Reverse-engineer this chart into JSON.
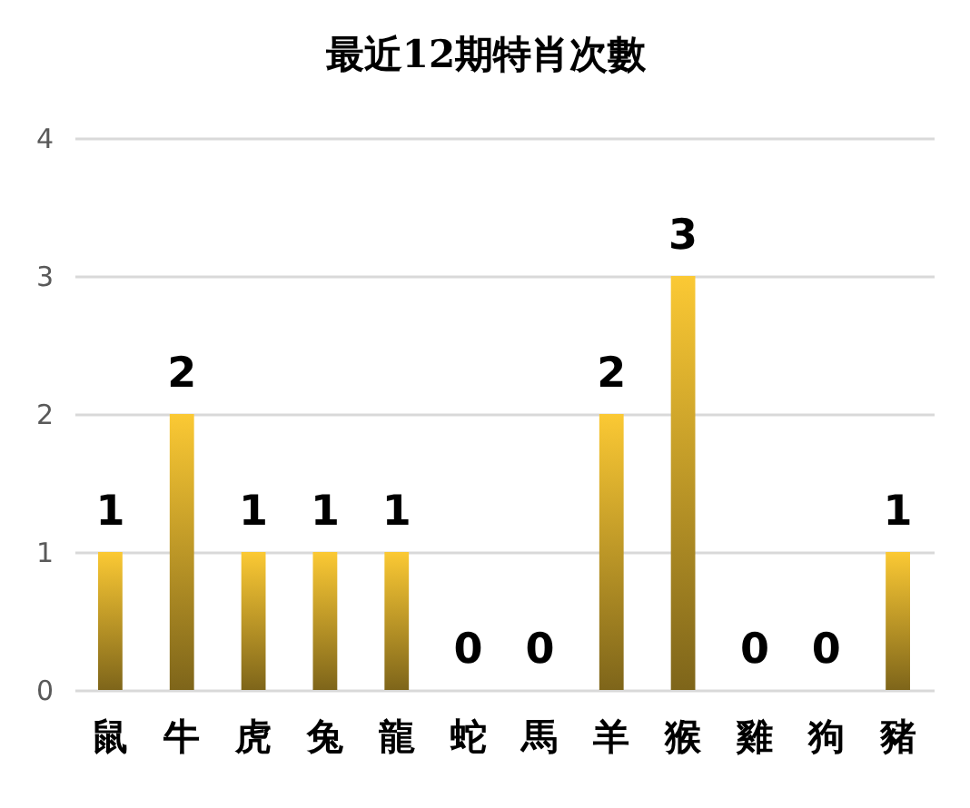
{
  "chart_data": {
    "type": "bar",
    "title": "最近12期特肖次數",
    "categories": [
      "鼠",
      "牛",
      "虎",
      "兔",
      "龍",
      "蛇",
      "馬",
      "羊",
      "猴",
      "雞",
      "狗",
      "豬"
    ],
    "values": [
      1,
      2,
      1,
      1,
      1,
      0,
      0,
      2,
      3,
      0,
      0,
      1
    ],
    "color": "#fbc934",
    "ylim": [
      0,
      4
    ],
    "yticks": [
      0,
      1,
      2,
      3,
      4
    ],
    "grid": "y",
    "data_labels": true
  }
}
